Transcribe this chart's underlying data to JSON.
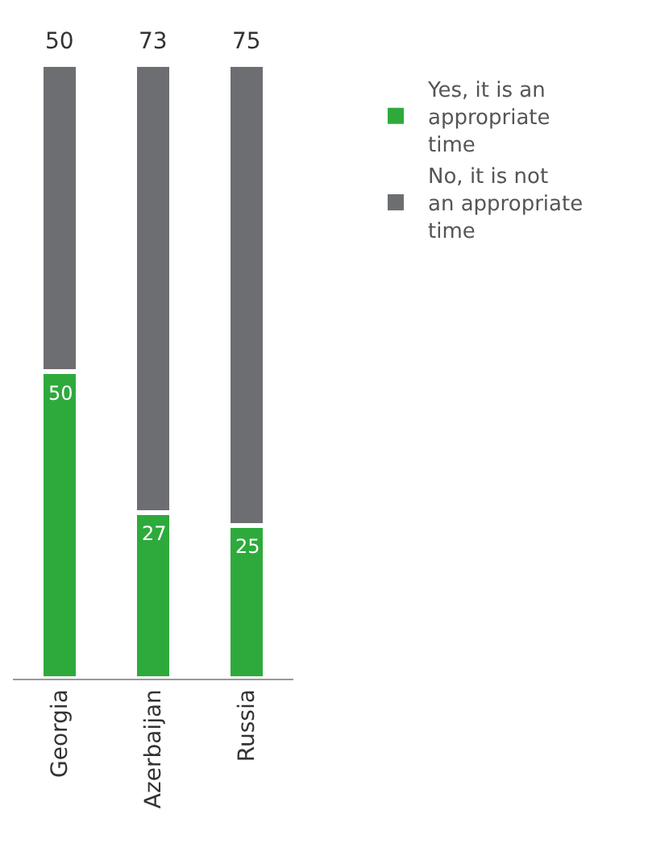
{
  "chart_data": {
    "type": "bar",
    "stacked": true,
    "categories": [
      "Georgia",
      "Azerbaijan",
      "Russia"
    ],
    "series": [
      {
        "name": "Yes, it is an appropriate time",
        "color": "#2eaa3c",
        "values": [
          50,
          27,
          25
        ]
      },
      {
        "name": "No, it is not an appropriate time",
        "color": "#6d6e71",
        "values": [
          50,
          73,
          75
        ]
      }
    ],
    "ylim": [
      0,
      100
    ],
    "data_labels": true,
    "legend": "top right",
    "grid": false
  }
}
